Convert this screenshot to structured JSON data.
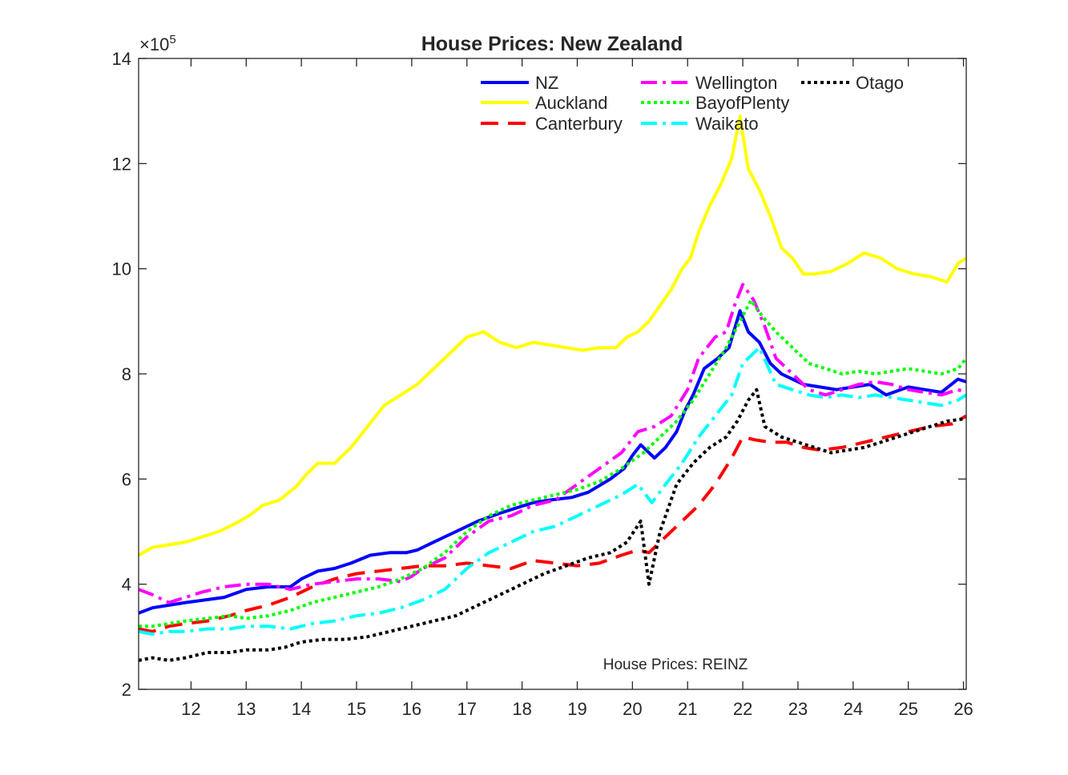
{
  "chart_data": {
    "type": "line",
    "title": "House Prices: New Zealand",
    "annotation": "House Prices: REINZ",
    "exponent_label": "×10",
    "exponent_power": "5",
    "xlim": [
      11.05,
      26.05
    ],
    "ylim": [
      2,
      14
    ],
    "x_ticks": [
      "12",
      "13",
      "14",
      "15",
      "16",
      "17",
      "18",
      "19",
      "20",
      "21",
      "22",
      "23",
      "24",
      "25",
      "26"
    ],
    "y_ticks": [
      "2",
      "4",
      "6",
      "8",
      "10",
      "12",
      "14"
    ],
    "legend_position": "top-right",
    "series": [
      {
        "name": "NZ",
        "color": "#0000ff",
        "style": "solid",
        "width": 4,
        "legend_col": 0,
        "legend_row": 0,
        "x": [
          11.05,
          11.3,
          11.6,
          11.9,
          12.25,
          12.6,
          13.0,
          13.4,
          13.8,
          14.0,
          14.3,
          14.6,
          14.9,
          15.25,
          15.6,
          15.9,
          16.1,
          16.4,
          16.8,
          17.2,
          17.6,
          17.9,
          18.2,
          18.5,
          18.9,
          19.2,
          19.6,
          19.85,
          20.0,
          20.15,
          20.4,
          20.6,
          20.8,
          20.95,
          21.1,
          21.3,
          21.55,
          21.75,
          21.95,
          22.1,
          22.3,
          22.5,
          22.7,
          22.9,
          23.1,
          23.4,
          23.7,
          24.0,
          24.3,
          24.6,
          25.0,
          25.3,
          25.6,
          25.9,
          26.05
        ],
        "y": [
          3.45,
          3.55,
          3.6,
          3.65,
          3.7,
          3.75,
          3.9,
          3.95,
          3.95,
          4.1,
          4.25,
          4.3,
          4.4,
          4.55,
          4.6,
          4.6,
          4.65,
          4.8,
          5.0,
          5.2,
          5.35,
          5.45,
          5.55,
          5.6,
          5.65,
          5.75,
          6.0,
          6.2,
          6.45,
          6.65,
          6.4,
          6.6,
          6.9,
          7.3,
          7.6,
          8.1,
          8.3,
          8.5,
          9.2,
          8.8,
          8.6,
          8.2,
          8.0,
          7.9,
          7.8,
          7.75,
          7.7,
          7.75,
          7.8,
          7.6,
          7.75,
          7.7,
          7.65,
          7.9,
          7.85
        ]
      },
      {
        "name": "Auckland",
        "color": "#ffff00",
        "style": "solid",
        "width": 4,
        "legend_col": 0,
        "legend_row": 1,
        "x": [
          11.05,
          11.3,
          11.6,
          11.9,
          12.2,
          12.5,
          12.8,
          13.05,
          13.3,
          13.6,
          13.9,
          14.1,
          14.3,
          14.6,
          14.9,
          15.2,
          15.5,
          15.8,
          16.1,
          16.4,
          16.7,
          17.0,
          17.3,
          17.6,
          17.9,
          18.2,
          18.5,
          18.8,
          19.1,
          19.4,
          19.7,
          19.9,
          20.1,
          20.3,
          20.5,
          20.7,
          20.9,
          21.05,
          21.2,
          21.4,
          21.6,
          21.8,
          21.95,
          22.1,
          22.3,
          22.5,
          22.7,
          22.9,
          23.1,
          23.3,
          23.6,
          23.9,
          24.2,
          24.5,
          24.8,
          25.1,
          25.4,
          25.7,
          25.9,
          26.05
        ],
        "y": [
          4.55,
          4.7,
          4.75,
          4.8,
          4.9,
          5.0,
          5.15,
          5.3,
          5.5,
          5.6,
          5.85,
          6.1,
          6.3,
          6.3,
          6.6,
          7.0,
          7.4,
          7.6,
          7.8,
          8.1,
          8.4,
          8.7,
          8.8,
          8.6,
          8.5,
          8.6,
          8.55,
          8.5,
          8.45,
          8.5,
          8.5,
          8.7,
          8.8,
          9.0,
          9.3,
          9.6,
          10.0,
          10.2,
          10.7,
          11.2,
          11.6,
          12.1,
          12.9,
          11.9,
          11.5,
          11.0,
          10.4,
          10.2,
          9.9,
          9.9,
          9.95,
          10.1,
          10.3,
          10.2,
          10.0,
          9.9,
          9.85,
          9.75,
          10.1,
          10.2
        ]
      },
      {
        "name": "Canterbury",
        "color": "#ff0000",
        "style": "dash",
        "width": 4,
        "legend_col": 0,
        "legend_row": 2,
        "x": [
          11.05,
          11.3,
          11.6,
          11.9,
          12.3,
          12.7,
          13.0,
          13.4,
          13.8,
          14.2,
          14.6,
          15.0,
          15.4,
          15.8,
          16.2,
          16.6,
          17.0,
          17.4,
          17.8,
          18.2,
          18.6,
          19.0,
          19.4,
          19.8,
          20.1,
          20.3,
          20.6,
          20.9,
          21.2,
          21.5,
          21.8,
          22.0,
          22.2,
          22.5,
          22.8,
          23.1,
          23.4,
          23.8,
          24.2,
          24.6,
          25.0,
          25.4,
          25.8,
          26.05
        ],
        "y": [
          3.15,
          3.1,
          3.2,
          3.25,
          3.3,
          3.4,
          3.5,
          3.6,
          3.75,
          3.95,
          4.1,
          4.2,
          4.25,
          4.3,
          4.35,
          4.35,
          4.4,
          4.35,
          4.3,
          4.45,
          4.4,
          4.35,
          4.4,
          4.55,
          4.65,
          4.6,
          4.9,
          5.2,
          5.5,
          5.9,
          6.4,
          6.8,
          6.75,
          6.7,
          6.7,
          6.6,
          6.55,
          6.6,
          6.7,
          6.8,
          6.9,
          7.0,
          7.05,
          7.2
        ]
      },
      {
        "name": "Wellington",
        "color": "#ff00ff",
        "style": "dashdot",
        "width": 4,
        "legend_col": 1,
        "legend_row": 0,
        "x": [
          11.05,
          11.3,
          11.6,
          11.9,
          12.2,
          12.6,
          13.0,
          13.4,
          13.8,
          14.2,
          14.6,
          15.0,
          15.4,
          15.8,
          16.0,
          16.2,
          16.6,
          17.0,
          17.4,
          17.8,
          18.2,
          18.6,
          19.0,
          19.4,
          19.8,
          20.1,
          20.4,
          20.7,
          21.0,
          21.2,
          21.5,
          21.7,
          21.85,
          22.0,
          22.2,
          22.4,
          22.6,
          22.9,
          23.2,
          23.5,
          23.8,
          24.1,
          24.4,
          24.7,
          25.0,
          25.3,
          25.6,
          25.9,
          26.05
        ],
        "y": [
          3.9,
          3.8,
          3.65,
          3.75,
          3.85,
          3.95,
          4.0,
          4.0,
          3.9,
          4.0,
          4.05,
          4.1,
          4.1,
          4.05,
          4.15,
          4.3,
          4.5,
          4.9,
          5.2,
          5.3,
          5.5,
          5.6,
          5.9,
          6.2,
          6.5,
          6.9,
          7.0,
          7.2,
          7.7,
          8.3,
          8.7,
          8.8,
          9.3,
          9.7,
          9.4,
          8.9,
          8.3,
          8.0,
          7.7,
          7.6,
          7.7,
          7.8,
          7.85,
          7.8,
          7.7,
          7.65,
          7.6,
          7.7,
          7.65
        ]
      },
      {
        "name": "BayofPlenty",
        "color": "#00ff00",
        "style": "dot",
        "width": 4,
        "legend_col": 1,
        "legend_row": 1,
        "x": [
          11.05,
          11.3,
          11.6,
          11.9,
          12.3,
          12.7,
          13.0,
          13.4,
          13.8,
          14.2,
          14.6,
          15.0,
          15.4,
          15.8,
          16.2,
          16.6,
          17.0,
          17.4,
          17.8,
          18.2,
          18.6,
          19.0,
          19.4,
          19.8,
          20.2,
          20.5,
          20.8,
          21.1,
          21.4,
          21.7,
          21.95,
          22.15,
          22.35,
          22.6,
          22.9,
          23.2,
          23.5,
          23.8,
          24.1,
          24.4,
          24.7,
          25.0,
          25.3,
          25.6,
          25.9,
          26.05
        ],
        "y": [
          3.2,
          3.2,
          3.25,
          3.3,
          3.35,
          3.4,
          3.35,
          3.4,
          3.5,
          3.65,
          3.75,
          3.85,
          3.95,
          4.1,
          4.3,
          4.6,
          5.0,
          5.3,
          5.5,
          5.6,
          5.7,
          5.8,
          5.95,
          6.2,
          6.5,
          6.8,
          7.1,
          7.5,
          8.0,
          8.5,
          9.0,
          9.4,
          9.1,
          8.8,
          8.5,
          8.2,
          8.1,
          8.0,
          8.05,
          8.0,
          8.05,
          8.1,
          8.05,
          8.0,
          8.1,
          8.3
        ]
      },
      {
        "name": "Waikato",
        "color": "#00ffff",
        "style": "dashdot",
        "width": 4,
        "legend_col": 1,
        "legend_row": 2,
        "x": [
          11.05,
          11.3,
          11.6,
          11.9,
          12.3,
          12.7,
          13.0,
          13.4,
          13.8,
          14.2,
          14.6,
          15.0,
          15.4,
          15.8,
          16.2,
          16.6,
          17.0,
          17.4,
          17.8,
          18.2,
          18.6,
          19.0,
          19.4,
          19.8,
          20.1,
          20.35,
          20.6,
          20.9,
          21.2,
          21.5,
          21.8,
          22.0,
          22.3,
          22.6,
          22.9,
          23.2,
          23.5,
          23.8,
          24.1,
          24.4,
          24.7,
          25.0,
          25.3,
          25.6,
          25.9,
          26.05
        ],
        "y": [
          3.1,
          3.05,
          3.1,
          3.1,
          3.15,
          3.15,
          3.2,
          3.2,
          3.15,
          3.25,
          3.3,
          3.4,
          3.45,
          3.55,
          3.7,
          3.9,
          4.3,
          4.6,
          4.8,
          5.0,
          5.1,
          5.3,
          5.5,
          5.7,
          5.9,
          5.55,
          5.9,
          6.3,
          6.8,
          7.2,
          7.6,
          8.2,
          8.5,
          7.8,
          7.7,
          7.6,
          7.55,
          7.6,
          7.55,
          7.6,
          7.55,
          7.5,
          7.45,
          7.4,
          7.5,
          7.6
        ]
      },
      {
        "name": "Otago",
        "color": "#000000",
        "style": "dot",
        "width": 4,
        "legend_col": 2,
        "legend_row": 0,
        "x": [
          11.05,
          11.3,
          11.6,
          11.9,
          12.3,
          12.7,
          13.0,
          13.4,
          13.7,
          14.0,
          14.4,
          14.8,
          15.2,
          15.6,
          16.0,
          16.4,
          16.8,
          17.2,
          17.6,
          18.0,
          18.4,
          18.8,
          19.2,
          19.6,
          19.9,
          20.15,
          20.3,
          20.5,
          20.8,
          21.1,
          21.4,
          21.7,
          21.9,
          22.1,
          22.25,
          22.4,
          22.7,
          23.0,
          23.3,
          23.6,
          23.9,
          24.2,
          24.5,
          24.8,
          25.1,
          25.4,
          25.7,
          26.05
        ],
        "y": [
          2.55,
          2.6,
          2.55,
          2.6,
          2.7,
          2.7,
          2.75,
          2.75,
          2.8,
          2.9,
          2.95,
          2.95,
          3.0,
          3.1,
          3.2,
          3.3,
          3.4,
          3.6,
          3.8,
          4.0,
          4.2,
          4.35,
          4.5,
          4.6,
          4.8,
          5.2,
          4.0,
          5.0,
          5.9,
          6.3,
          6.6,
          6.8,
          7.1,
          7.5,
          7.7,
          7.0,
          6.8,
          6.7,
          6.6,
          6.5,
          6.55,
          6.6,
          6.7,
          6.8,
          6.9,
          7.0,
          7.1,
          7.15
        ]
      }
    ]
  }
}
